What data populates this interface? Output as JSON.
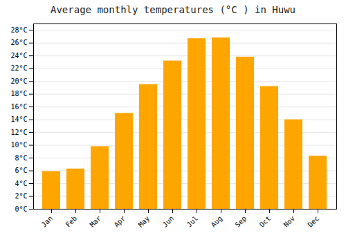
{
  "chart_data": {
    "type": "bar",
    "title": "Average monthly temperatures (°C ) in Huwu",
    "categories": [
      "Jan",
      "Feb",
      "Mar",
      "Apr",
      "May",
      "Jun",
      "Jul",
      "Aug",
      "Sep",
      "Oct",
      "Nov",
      "Dec"
    ],
    "values": [
      5.9,
      6.3,
      9.8,
      15.0,
      19.5,
      23.2,
      26.7,
      26.8,
      23.8,
      19.2,
      14.0,
      8.3
    ],
    "color": "#FFA500",
    "ylim": [
      0,
      29
    ],
    "yticks": [
      {
        "value": 0,
        "label": "0°C"
      },
      {
        "value": 2,
        "label": "2°C"
      },
      {
        "value": 4,
        "label": "4°C"
      },
      {
        "value": 6,
        "label": "6°C"
      },
      {
        "value": 8,
        "label": "8°C"
      },
      {
        "value": 10,
        "label": "10°C"
      },
      {
        "value": 12,
        "label": "12°C"
      },
      {
        "value": 14,
        "label": "14°C"
      },
      {
        "value": 16,
        "label": "16°C"
      },
      {
        "value": 18,
        "label": "18°C"
      },
      {
        "value": 20,
        "label": "20°C"
      },
      {
        "value": 22,
        "label": "22°C"
      },
      {
        "value": 24,
        "label": "24°C"
      },
      {
        "value": 26,
        "label": "26°C"
      },
      {
        "value": 28,
        "label": "28°C"
      }
    ],
    "grid": true
  }
}
